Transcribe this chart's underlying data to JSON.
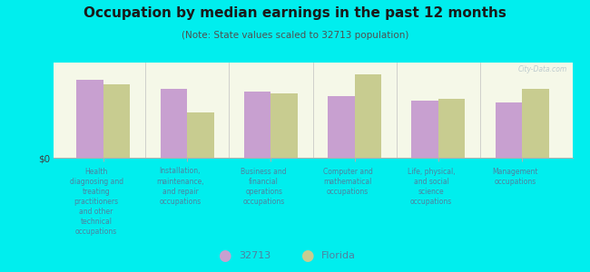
{
  "title": "Occupation by median earnings in the past 12 months",
  "subtitle": "(Note: State values scaled to 32713 population)",
  "background_color": "#00eeee",
  "plot_bg_top": "#f5f8e8",
  "plot_bg_bottom": "#e8f0d0",
  "categories": [
    "Health\ndiagnosing and\ntreating\npractitioners\nand other\ntechnical\noccupations",
    "Installation,\nmaintenance,\nand repair\noccupations",
    "Business and\nfinancial\noperations\noccupations",
    "Computer and\nmathematical\noccupations",
    "Life, physical,\nand social\nscience\noccupations",
    "Management\noccupations"
  ],
  "values_32713": [
    0.82,
    0.72,
    0.7,
    0.65,
    0.6,
    0.58
  ],
  "values_florida": [
    0.77,
    0.48,
    0.68,
    0.88,
    0.62,
    0.72
  ],
  "color_32713": "#c8a0d0",
  "color_florida": "#c8cc90",
  "ylabel": "$0",
  "legend_labels": [
    "32713",
    "Florida"
  ],
  "watermark": "City-Data.com",
  "title_color": "#1a1a1a",
  "subtitle_color": "#505050",
  "label_color": "#5080a0"
}
